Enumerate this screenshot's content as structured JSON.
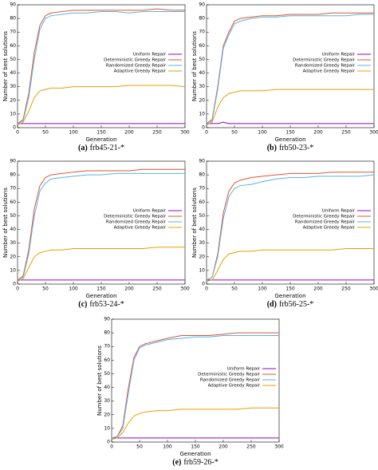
{
  "chart_data": [
    {
      "type": "line",
      "label": "(a)",
      "caption": "frb45-21-*",
      "xlabel": "Generation",
      "ylabel": "Number of best solutions",
      "x": [
        0,
        10,
        20,
        30,
        40,
        50,
        60,
        80,
        100,
        125,
        150,
        175,
        200,
        225,
        250,
        275,
        300
      ],
      "xlim": [
        0,
        300
      ],
      "xticks": [
        0,
        50,
        100,
        150,
        200,
        250,
        300
      ],
      "ylim": [
        0,
        90
      ],
      "yticks": [
        0,
        10,
        20,
        30,
        40,
        50,
        60,
        70,
        80,
        90
      ],
      "legend": "right",
      "series": [
        {
          "name": "Uniform Repair",
          "color": "#9400d3",
          "values": [
            3,
            3,
            3,
            3,
            3,
            3,
            3,
            3,
            3,
            3,
            3,
            3,
            3,
            3,
            3,
            3,
            3
          ]
        },
        {
          "name": "Deterministic Greedy Repair",
          "color": "#e0552b",
          "values": [
            3,
            6,
            25,
            55,
            75,
            82,
            84,
            85,
            86,
            86,
            86,
            86,
            86,
            86,
            87,
            86,
            86
          ]
        },
        {
          "name": "Randomized Greedy Repair",
          "color": "#56b4e9",
          "values": [
            3,
            5,
            22,
            50,
            72,
            80,
            82,
            83,
            84,
            84,
            85,
            85,
            84,
            85,
            85,
            85,
            85
          ]
        },
        {
          "name": "Adaptive Greedy Repair",
          "color": "#e6a000",
          "values": [
            2,
            4,
            12,
            22,
            27,
            28,
            29,
            29,
            30,
            30,
            30,
            30,
            31,
            31,
            31,
            31,
            30
          ]
        }
      ]
    },
    {
      "type": "line",
      "label": "(b)",
      "caption": "frb50-23-*",
      "xlabel": "Generation",
      "ylabel": "Number of best solutions",
      "x": [
        0,
        10,
        20,
        30,
        40,
        50,
        60,
        80,
        100,
        125,
        150,
        175,
        200,
        225,
        250,
        275,
        300
      ],
      "xlim": [
        0,
        300
      ],
      "xticks": [
        0,
        50,
        100,
        150,
        200,
        250,
        300
      ],
      "ylim": [
        0,
        90
      ],
      "yticks": [
        0,
        10,
        20,
        30,
        40,
        50,
        60,
        70,
        80,
        90
      ],
      "legend": "right",
      "series": [
        {
          "name": "Uniform Repair",
          "color": "#9400d3",
          "values": [
            3,
            3,
            3,
            4,
            3,
            3,
            3,
            3,
            3,
            3,
            3,
            3,
            3,
            3,
            3,
            3,
            3
          ]
        },
        {
          "name": "Deterministic Greedy Repair",
          "color": "#e0552b",
          "values": [
            3,
            6,
            30,
            60,
            70,
            78,
            80,
            81,
            82,
            82,
            83,
            83,
            83,
            84,
            84,
            84,
            84
          ]
        },
        {
          "name": "Randomized Greedy Repair",
          "color": "#56b4e9",
          "values": [
            3,
            5,
            28,
            58,
            68,
            76,
            78,
            80,
            81,
            81,
            82,
            82,
            82,
            82,
            82,
            83,
            83
          ]
        },
        {
          "name": "Adaptive Greedy Repair",
          "color": "#e6a000",
          "values": [
            2,
            4,
            15,
            22,
            25,
            26,
            27,
            27,
            27,
            28,
            28,
            28,
            28,
            28,
            28,
            28,
            28
          ]
        }
      ]
    },
    {
      "type": "line",
      "label": "(c)",
      "caption": "frb53-24-*",
      "xlabel": "Generation",
      "ylabel": "Number of best solutions",
      "x": [
        0,
        10,
        20,
        30,
        40,
        50,
        60,
        80,
        100,
        125,
        150,
        175,
        200,
        225,
        250,
        275,
        300
      ],
      "xlim": [
        0,
        300
      ],
      "xticks": [
        0,
        50,
        100,
        150,
        200,
        250,
        300
      ],
      "ylim": [
        0,
        90
      ],
      "yticks": [
        0,
        10,
        20,
        30,
        40,
        50,
        60,
        70,
        80,
        90
      ],
      "legend": "right",
      "series": [
        {
          "name": "Uniform Repair",
          "color": "#9400d3",
          "values": [
            3,
            3,
            3,
            3,
            3,
            3,
            3,
            3,
            3,
            3,
            3,
            3,
            3,
            3,
            3,
            3,
            3
          ]
        },
        {
          "name": "Deterministic Greedy Repair",
          "color": "#e0552b",
          "values": [
            3,
            6,
            25,
            55,
            72,
            78,
            80,
            81,
            82,
            83,
            83,
            83,
            83,
            84,
            84,
            84,
            84
          ]
        },
        {
          "name": "Randomized Greedy Repair",
          "color": "#56b4e9",
          "values": [
            3,
            5,
            22,
            50,
            68,
            74,
            77,
            78,
            79,
            80,
            80,
            81,
            81,
            81,
            81,
            81,
            81
          ]
        },
        {
          "name": "Adaptive Greedy Repair",
          "color": "#e6a000",
          "values": [
            2,
            4,
            12,
            20,
            23,
            24,
            25,
            25,
            26,
            26,
            26,
            26,
            26,
            26,
            27,
            27,
            27
          ]
        }
      ]
    },
    {
      "type": "line",
      "label": "(d)",
      "caption": "frb56-25-*",
      "xlabel": "Generation",
      "ylabel": "Number of best solutions",
      "x": [
        0,
        10,
        20,
        30,
        40,
        50,
        60,
        80,
        100,
        125,
        150,
        175,
        200,
        225,
        250,
        275,
        300
      ],
      "xlim": [
        0,
        300
      ],
      "xticks": [
        0,
        50,
        100,
        150,
        200,
        250,
        300
      ],
      "ylim": [
        0,
        90
      ],
      "yticks": [
        0,
        10,
        20,
        30,
        40,
        50,
        60,
        70,
        80,
        90
      ],
      "legend": "right",
      "series": [
        {
          "name": "Uniform Repair",
          "color": "#9400d3",
          "values": [
            3,
            3,
            3,
            3,
            3,
            3,
            3,
            3,
            3,
            3,
            3,
            3,
            3,
            3,
            3,
            3,
            3
          ]
        },
        {
          "name": "Deterministic Greedy Repair",
          "color": "#e0552b",
          "values": [
            3,
            5,
            22,
            52,
            68,
            74,
            76,
            78,
            79,
            80,
            81,
            81,
            81,
            82,
            82,
            82,
            82
          ]
        },
        {
          "name": "Randomized Greedy Repair",
          "color": "#56b4e9",
          "values": [
            3,
            5,
            20,
            48,
            64,
            70,
            72,
            73,
            75,
            77,
            78,
            78,
            79,
            79,
            79,
            79,
            80
          ]
        },
        {
          "name": "Adaptive Greedy Repair",
          "color": "#e6a000",
          "values": [
            2,
            3,
            10,
            18,
            22,
            23,
            24,
            24,
            25,
            25,
            25,
            25,
            25,
            25,
            26,
            26,
            26
          ]
        }
      ]
    },
    {
      "type": "line",
      "label": "(e)",
      "caption": "frb59-26-*",
      "xlabel": "Generation",
      "ylabel": "Number of best solutions",
      "x": [
        0,
        10,
        20,
        30,
        40,
        50,
        60,
        80,
        100,
        125,
        150,
        175,
        200,
        225,
        250,
        275,
        300
      ],
      "xlim": [
        0,
        300
      ],
      "xticks": [
        0,
        50,
        100,
        150,
        200,
        250,
        300
      ],
      "ylim": [
        0,
        90
      ],
      "yticks": [
        0,
        10,
        20,
        30,
        40,
        50,
        60,
        70,
        80,
        90
      ],
      "legend": "right",
      "series": [
        {
          "name": "Uniform Repair",
          "color": "#9400d3",
          "values": [
            3,
            3,
            3,
            3,
            3,
            3,
            3,
            3,
            3,
            3,
            3,
            3,
            3,
            3,
            3,
            3,
            3
          ]
        },
        {
          "name": "Deterministic Greedy Repair",
          "color": "#e0552b",
          "values": [
            3,
            4,
            12,
            40,
            62,
            70,
            72,
            74,
            76,
            78,
            78,
            78,
            79,
            80,
            80,
            80,
            80
          ]
        },
        {
          "name": "Randomized Greedy Repair",
          "color": "#56b4e9",
          "values": [
            3,
            4,
            10,
            36,
            60,
            69,
            71,
            73,
            75,
            76,
            77,
            77,
            78,
            78,
            78,
            78,
            78
          ]
        },
        {
          "name": "Adaptive Greedy Repair",
          "color": "#e6a000",
          "values": [
            2,
            3,
            7,
            14,
            19,
            21,
            22,
            23,
            23,
            24,
            24,
            24,
            24,
            24,
            25,
            25,
            25
          ]
        }
      ]
    }
  ]
}
